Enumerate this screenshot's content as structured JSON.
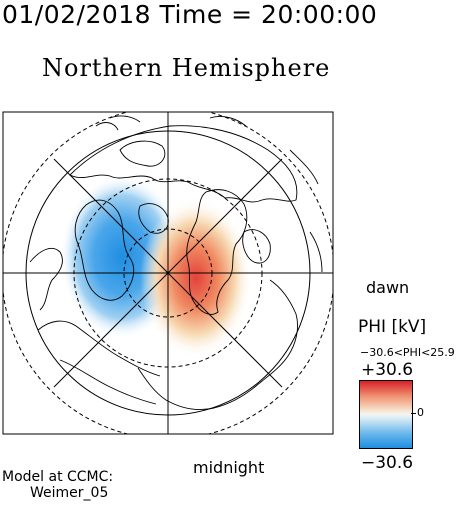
{
  "header": {
    "title": "01/02/2018 Time = 20:00:00"
  },
  "map": {
    "title": "Northern Hemisphere"
  },
  "labels": {
    "dawn": "dawn",
    "midnight": "midnight"
  },
  "legend": {
    "quantity_label": "PHI [kV]",
    "range_text": "−30.6<PHI<25.9",
    "max_label": "+30.6",
    "zero_label": "0",
    "min_label": "−30.6",
    "colors": {
      "positive": "#d8202a",
      "negative": "#1f8ee2",
      "neutral": "#f3f5f3"
    }
  },
  "credits": {
    "line1": "Model at CCMC:",
    "line2": "Weimer_05"
  }
}
